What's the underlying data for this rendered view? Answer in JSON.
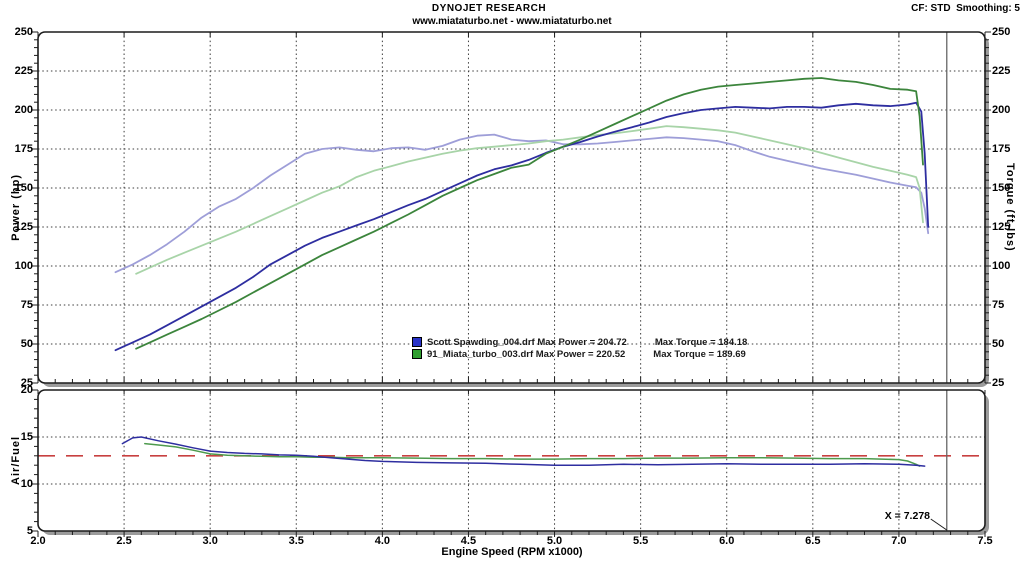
{
  "header": {
    "title": "DYNOJET RESEARCH",
    "subtitle": "www.miataturbo.net - www.miataturbo.net",
    "cf_smoothing": "CF: STD  Smoothing: 5"
  },
  "legend": {
    "runs": [
      {
        "file": "Scott Spawding_004.drf",
        "max_power": 204.72,
        "max_torque": 184.18,
        "label_power": "Scott Spawding_004.drf Max Power = 204.72",
        "label_torque": "Max Torque = 184.18",
        "swatch_color": "#2832c8"
      },
      {
        "file": "91_Miata_turbo_003.drf",
        "max_power": 220.52,
        "max_torque": 189.69,
        "label_power": "91_Miata_turbo_003.drf Max Power = 220.52",
        "label_torque": "Max Torque = 189.69",
        "swatch_color": "#2f9e2f"
      }
    ]
  },
  "cursor": {
    "label": "X = 7.278",
    "x": 7.278,
    "color": "#666666"
  },
  "colors": {
    "frame": "#1c1c1c",
    "shadow": "#9b9b9b",
    "grid": "#3c3c3c",
    "power_blue": "#2e2ea0",
    "torque_blue": "#9e9ed8",
    "power_green": "#3c853c",
    "torque_green": "#a8d4a8",
    "afr_blue": "#2e2ea0",
    "afr_green": "#4d9a4d",
    "afr_target": "#c84040"
  },
  "chart_data": [
    {
      "type": "line",
      "ylabel": "Power (hp)",
      "y2label": "Torque (ft-lbs)",
      "xlim": [
        2.0,
        7.5
      ],
      "ylim": [
        25,
        250
      ],
      "yticks": [
        25,
        50,
        75,
        100,
        125,
        150,
        175,
        200,
        225,
        250
      ],
      "ytick_labels": [
        "25",
        "50",
        "75",
        "100",
        "125",
        "150",
        "175",
        "200",
        "225",
        "250"
      ],
      "xticks": [
        2.0,
        2.5,
        3.0,
        3.5,
        4.0,
        4.5,
        5.0,
        5.5,
        6.0,
        6.5,
        7.0,
        7.5
      ],
      "grid": true,
      "legend_position": "inside-bottom-center",
      "series": [
        {
          "name": "power-blue",
          "color_key": "power_blue",
          "x": [
            2.45,
            2.55,
            2.65,
            2.75,
            2.85,
            2.95,
            3.05,
            3.15,
            3.25,
            3.35,
            3.45,
            3.55,
            3.65,
            3.75,
            3.85,
            3.95,
            4.05,
            4.15,
            4.25,
            4.35,
            4.45,
            4.55,
            4.65,
            4.75,
            4.85,
            4.95,
            5.05,
            5.15,
            5.25,
            5.35,
            5.45,
            5.55,
            5.65,
            5.75,
            5.85,
            5.95,
            6.05,
            6.15,
            6.25,
            6.35,
            6.45,
            6.55,
            6.65,
            6.75,
            6.85,
            6.95,
            7.05,
            7.1,
            7.13,
            7.15,
            7.17
          ],
          "y": [
            46,
            51,
            56,
            62,
            68,
            74,
            80,
            86,
            93,
            101,
            107,
            113,
            118,
            122,
            126,
            130,
            134.5,
            139,
            143,
            148,
            153,
            158,
            162,
            164.5,
            168,
            172.5,
            176.5,
            179.5,
            183,
            186,
            189,
            192,
            195.5,
            198,
            200,
            201,
            202,
            201.5,
            201,
            202,
            202,
            201.5,
            203,
            204,
            203,
            202.5,
            203.5,
            204.7,
            199,
            172,
            125
          ]
        },
        {
          "name": "torque-blue",
          "color_key": "torque_blue",
          "x": [
            2.45,
            2.55,
            2.65,
            2.75,
            2.85,
            2.95,
            3.05,
            3.15,
            3.25,
            3.35,
            3.45,
            3.55,
            3.65,
            3.75,
            3.85,
            3.95,
            4.05,
            4.15,
            4.25,
            4.35,
            4.45,
            4.55,
            4.65,
            4.75,
            4.85,
            4.95,
            5.05,
            5.15,
            5.25,
            5.35,
            5.45,
            5.55,
            5.65,
            5.75,
            5.85,
            5.95,
            6.05,
            6.15,
            6.25,
            6.35,
            6.45,
            6.55,
            6.65,
            6.75,
            6.85,
            6.95,
            7.05,
            7.1,
            7.13,
            7.15,
            7.17
          ],
          "y": [
            96,
            101,
            107,
            114,
            122,
            131,
            138,
            143,
            150,
            158,
            165,
            172,
            175,
            176,
            174.5,
            173.5,
            175.5,
            176,
            174.5,
            177,
            181,
            183.5,
            184.2,
            181,
            180,
            180.5,
            178,
            178,
            178.5,
            179.5,
            180.5,
            181.5,
            182.5,
            182,
            181,
            180,
            177.5,
            173.5,
            170,
            167.5,
            165,
            162.5,
            160.5,
            158.5,
            156,
            153.5,
            151.5,
            150.5,
            147,
            137,
            121
          ]
        },
        {
          "name": "power-green",
          "color_key": "power_green",
          "x": [
            2.57,
            2.65,
            2.75,
            2.85,
            2.95,
            3.05,
            3.15,
            3.25,
            3.35,
            3.45,
            3.55,
            3.65,
            3.75,
            3.85,
            3.95,
            4.05,
            4.15,
            4.25,
            4.35,
            4.45,
            4.55,
            4.65,
            4.75,
            4.85,
            4.95,
            5.05,
            5.15,
            5.25,
            5.35,
            5.45,
            5.55,
            5.65,
            5.75,
            5.85,
            5.95,
            6.05,
            6.15,
            6.25,
            6.35,
            6.45,
            6.55,
            6.65,
            6.75,
            6.85,
            6.95,
            7.05,
            7.1,
            7.12,
            7.14
          ],
          "y": [
            47,
            51,
            56,
            61,
            66,
            71.5,
            77,
            83,
            89,
            95,
            101,
            107,
            112,
            117,
            122,
            127.5,
            133,
            139,
            145,
            150,
            155,
            159,
            163,
            165,
            172,
            176.5,
            181,
            186,
            191,
            196,
            201,
            206,
            210,
            213,
            215,
            216,
            217,
            218,
            219,
            220,
            220.5,
            219,
            218,
            216,
            213.5,
            213,
            212,
            196,
            165
          ]
        },
        {
          "name": "torque-green",
          "color_key": "torque_green",
          "x": [
            2.57,
            2.65,
            2.75,
            2.85,
            2.95,
            3.05,
            3.15,
            3.25,
            3.35,
            3.45,
            3.55,
            3.65,
            3.75,
            3.85,
            3.95,
            4.05,
            4.15,
            4.25,
            4.35,
            4.45,
            4.55,
            4.65,
            4.75,
            4.85,
            4.95,
            5.05,
            5.15,
            5.25,
            5.35,
            5.45,
            5.55,
            5.65,
            5.75,
            5.85,
            5.95,
            6.05,
            6.15,
            6.25,
            6.35,
            6.45,
            6.55,
            6.65,
            6.75,
            6.85,
            6.95,
            7.05,
            7.1,
            7.12,
            7.14
          ],
          "y": [
            95,
            99,
            104,
            108.5,
            113,
            117.5,
            122,
            127,
            132,
            137,
            142,
            147,
            151,
            157,
            161,
            164,
            167,
            169.5,
            172,
            174,
            175.5,
            176.5,
            177.5,
            178.5,
            180,
            181,
            182.5,
            184,
            185,
            186.5,
            188,
            189.7,
            189,
            188,
            187,
            185.5,
            183,
            180.5,
            178,
            175.5,
            172.5,
            169.5,
            166.5,
            163.5,
            161,
            158.5,
            157,
            150,
            128
          ]
        }
      ]
    },
    {
      "type": "line",
      "ylabel": "Air/Fuel",
      "xlabel": "Engine Speed (RPM x1000)",
      "xlim": [
        2.0,
        7.5
      ],
      "ylim": [
        5,
        20
      ],
      "yticks": [
        5,
        10,
        15,
        20
      ],
      "ytick_labels": [
        "5",
        "10",
        "15",
        "20"
      ],
      "xticks": [
        2.0,
        2.5,
        3.0,
        3.5,
        4.0,
        4.5,
        5.0,
        5.5,
        6.0,
        6.5,
        7.0,
        7.5
      ],
      "xtick_labels": [
        "2.0",
        "2.5",
        "3.0",
        "3.5",
        "4.0",
        "4.5",
        "5.0",
        "5.5",
        "6.0",
        "6.5",
        "7.0",
        "7.5"
      ],
      "grid": true,
      "target_line": {
        "value": 13.0
      },
      "series": [
        {
          "name": "afr-blue",
          "color_key": "afr_blue",
          "x": [
            2.49,
            2.55,
            2.6,
            2.7,
            2.8,
            2.9,
            3.0,
            3.1,
            3.2,
            3.3,
            3.4,
            3.5,
            3.6,
            3.7,
            3.8,
            3.9,
            4.0,
            4.2,
            4.4,
            4.6,
            4.8,
            5.0,
            5.2,
            5.4,
            5.6,
            5.8,
            6.0,
            6.2,
            6.4,
            6.6,
            6.8,
            7.0,
            7.05,
            7.1,
            7.15
          ],
          "y": [
            14.3,
            14.9,
            15.0,
            14.6,
            14.25,
            13.85,
            13.5,
            13.35,
            13.25,
            13.2,
            13.1,
            13.05,
            12.95,
            12.8,
            12.65,
            12.5,
            12.4,
            12.3,
            12.25,
            12.2,
            12.1,
            12.0,
            12.0,
            12.1,
            12.05,
            12.1,
            12.15,
            12.1,
            12.1,
            12.1,
            12.15,
            12.1,
            12.05,
            12.0,
            11.9
          ]
        },
        {
          "name": "afr-green",
          "color_key": "afr_green",
          "x": [
            2.62,
            2.7,
            2.8,
            2.9,
            3.0,
            3.1,
            3.2,
            3.3,
            3.4,
            3.5,
            3.6,
            3.7,
            3.8,
            4.0,
            4.2,
            4.4,
            4.6,
            4.8,
            5.0,
            5.2,
            5.4,
            5.6,
            5.8,
            6.0,
            6.2,
            6.4,
            6.6,
            6.8,
            7.0,
            7.05,
            7.1,
            7.12
          ],
          "y": [
            14.3,
            14.15,
            13.95,
            13.6,
            13.2,
            13.05,
            13.0,
            12.95,
            12.9,
            12.9,
            12.85,
            12.85,
            12.8,
            12.8,
            12.75,
            12.7,
            12.7,
            12.65,
            12.65,
            12.7,
            12.7,
            12.75,
            12.75,
            12.8,
            12.8,
            12.75,
            12.7,
            12.7,
            12.6,
            12.45,
            12.1,
            11.9
          ]
        }
      ]
    }
  ]
}
